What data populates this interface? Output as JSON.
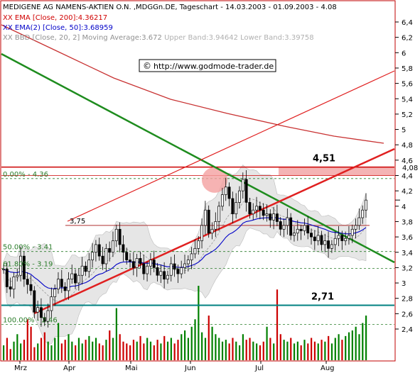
{
  "header": {
    "title": "MEDIGENE AG NAMENS-AKTIEN O.N. ,MDGGn.DE, Tageschart - 14.03.2003 - 01.09.2003 - 4.08",
    "legend": [
      {
        "label": "EMA [Close, 200]:4.36217",
        "color": "#d00000"
      },
      {
        "label": "EMA(2) [Close, 50]:3.68959",
        "color": "#0000c8"
      },
      {
        "label": "BBD [Close, 20, 2] Moving Average:3.672",
        "color": "#a0a0a0",
        "extra": "Upper Band:3.94642 Lower Band:3.39758"
      }
    ],
    "watermark": "http://www.godmode-trader.de",
    "copyright_symbol": "©"
  },
  "colors": {
    "frame": "#c00000",
    "candle": "#000000",
    "ema200": "#c83232",
    "ema50": "#0000c8",
    "band": "#e6e6e6",
    "fib": "#2a7d2a",
    "support": "#008080",
    "downtrend": "#1e8c1e",
    "uptrend": "#e02020",
    "resistance_box": "#f4b4b4",
    "volume_up": "#008000",
    "volume_down": "#cc0000"
  },
  "chart_data": {
    "type": "candlestick",
    "y_axis": {
      "min": 2.2,
      "max": 6.45,
      "ticks": [
        "6,4",
        "6,2",
        "6",
        "5,8",
        "5,6",
        "5,4",
        "5,2",
        "5",
        "4,8",
        "4,6",
        "4,4",
        "4,2",
        "4",
        "3,8",
        "3,6",
        "3,4",
        "3,2",
        "3",
        "2,8",
        "2,6",
        "2,4"
      ],
      "last_price_label": "4,08"
    },
    "x_axis": {
      "months": [
        "Mrz",
        "Apr",
        "Mai",
        "Jun",
        "Jul",
        "Aug"
      ]
    },
    "date_range": [
      "14.03.2003",
      "01.09.2003"
    ],
    "last_close": 4.08,
    "fibonacci_levels": [
      {
        "label": "0.00% - 4.36",
        "value": 4.36
      },
      {
        "label": "50.00% - 3.41",
        "value": 3.41
      },
      {
        "label": "61.80% - 3.19",
        "value": 3.19
      },
      {
        "label": "100.00% - 2.46",
        "value": 2.46
      }
    ],
    "horizontal_levels": [
      {
        "label": "4,51",
        "value": 4.51
      },
      {
        "label": "3,75",
        "value": 3.75
      },
      {
        "label": "2,71",
        "value": 2.71
      }
    ],
    "closes": [
      3.18,
      2.95,
      2.92,
      3.08,
      3.1,
      3.35,
      3.05,
      2.98,
      2.9,
      2.62,
      2.68,
      2.55,
      2.5,
      2.64,
      2.82,
      2.92,
      3.05,
      2.95,
      2.9,
      3.05,
      3.12,
      3.0,
      3.1,
      3.22,
      3.15,
      3.3,
      3.4,
      3.5,
      3.35,
      3.25,
      3.45,
      3.4,
      3.55,
      3.7,
      3.5,
      3.4,
      3.3,
      3.28,
      3.2,
      3.32,
      3.25,
      3.12,
      3.22,
      3.3,
      3.2,
      3.1,
      3.15,
      3.05,
      3.1,
      3.25,
      3.18,
      3.12,
      3.2,
      3.25,
      3.3,
      3.38,
      3.45,
      3.55,
      3.75,
      3.95,
      3.65,
      3.7,
      3.8,
      4.0,
      4.15,
      4.25,
      4.1,
      3.9,
      4.05,
      4.2,
      4.35,
      4.05,
      3.9,
      3.95,
      4.0,
      3.95,
      3.88,
      3.9,
      3.82,
      3.9,
      3.8,
      3.7,
      3.75,
      3.85,
      3.62,
      3.65,
      3.7,
      3.68,
      3.75,
      3.65,
      3.6,
      3.55,
      3.62,
      3.5,
      3.55,
      3.45,
      3.5,
      3.58,
      3.62,
      3.55,
      3.58,
      3.62,
      3.7,
      3.75,
      3.85,
      3.95,
      4.08
    ],
    "volume": [
      8,
      12,
      6,
      10,
      14,
      9,
      11,
      22,
      18,
      7,
      9,
      12,
      15,
      10,
      8,
      12,
      20,
      9,
      11,
      14,
      10,
      8,
      12,
      9,
      11,
      13,
      10,
      12,
      9,
      8,
      11,
      16,
      12,
      28,
      14,
      10,
      9,
      8,
      11,
      10,
      13,
      9,
      12,
      10,
      8,
      11,
      9,
      13,
      10,
      12,
      9,
      11,
      14,
      16,
      12,
      18,
      22,
      40,
      15,
      12,
      24,
      18,
      14,
      12,
      10,
      11,
      9,
      12,
      10,
      8,
      14,
      11,
      12,
      10,
      9,
      8,
      10,
      18,
      12,
      9,
      38,
      14,
      11,
      10,
      12,
      9,
      10,
      8,
      11,
      9,
      12,
      10,
      9,
      11,
      10,
      13,
      9,
      12,
      14,
      11,
      13,
      15,
      16,
      18,
      14,
      20,
      24
    ]
  }
}
